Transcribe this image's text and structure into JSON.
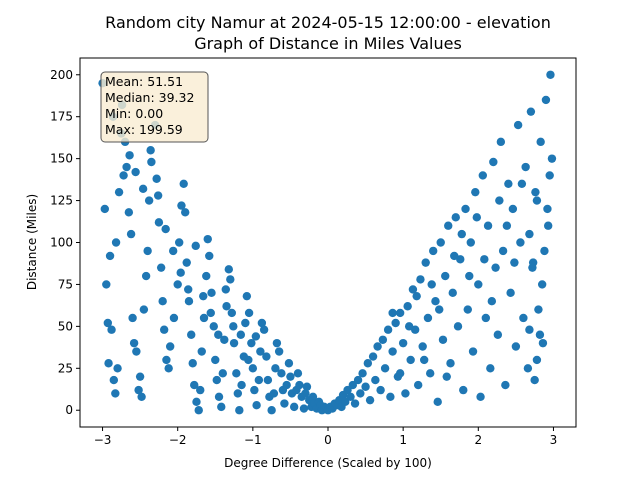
{
  "chart_data": {
    "type": "scatter",
    "title_line1": "Random city Namur at 2024-05-15 12:00:00  - elevation",
    "title_line2": "Graph of Distance in Miles Values",
    "xlabel": "Degree Difference (Scaled by 100)",
    "ylabel": "Distance (Miles)",
    "xlim": [
      -3.3,
      3.3
    ],
    "ylim": [
      -10,
      210
    ],
    "x_ticks": [
      -3,
      -2,
      -1,
      0,
      1,
      2,
      3
    ],
    "y_ticks": [
      0,
      25,
      50,
      75,
      100,
      125,
      150,
      175,
      200
    ],
    "point_color": "#1f77b4",
    "stats": {
      "mean": "Mean: 51.51",
      "median": "Median: 39.32",
      "min": "Min: 0.00",
      "max": "Max: 199.59"
    },
    "stats_box_fill": "#f9ecd2",
    "points": [
      [
        -3.0,
        195
      ],
      [
        -2.97,
        120
      ],
      [
        -2.95,
        75
      ],
      [
        -2.9,
        92
      ],
      [
        -2.93,
        52
      ],
      [
        -2.88,
        48
      ],
      [
        -2.92,
        28
      ],
      [
        -2.85,
        18
      ],
      [
        -2.83,
        10
      ],
      [
        -2.8,
        25
      ],
      [
        -2.82,
        100
      ],
      [
        -2.78,
        130
      ],
      [
        -2.75,
        165
      ],
      [
        -2.7,
        160
      ],
      [
        -2.72,
        140
      ],
      [
        -2.68,
        145
      ],
      [
        -2.65,
        118
      ],
      [
        -2.62,
        105
      ],
      [
        -2.6,
        55
      ],
      [
        -2.58,
        40
      ],
      [
        -2.55,
        35
      ],
      [
        -2.5,
        20
      ],
      [
        -2.52,
        12
      ],
      [
        -2.48,
        8
      ],
      [
        -2.45,
        60
      ],
      [
        -2.42,
        80
      ],
      [
        -2.4,
        95
      ],
      [
        -2.38,
        125
      ],
      [
        -2.35,
        148
      ],
      [
        -2.3,
        170
      ],
      [
        -2.28,
        138
      ],
      [
        -2.25,
        112
      ],
      [
        -2.22,
        85
      ],
      [
        -2.2,
        65
      ],
      [
        -2.18,
        48
      ],
      [
        -2.15,
        30
      ],
      [
        -2.12,
        25
      ],
      [
        -2.1,
        38
      ],
      [
        -2.05,
        55
      ],
      [
        -2.0,
        75
      ],
      [
        -1.98,
        100
      ],
      [
        -1.95,
        122
      ],
      [
        -1.92,
        135
      ],
      [
        -1.9,
        118
      ],
      [
        -1.88,
        88
      ],
      [
        -1.85,
        65
      ],
      [
        -1.82,
        45
      ],
      [
        -1.8,
        28
      ],
      [
        -1.78,
        15
      ],
      [
        -1.75,
        5
      ],
      [
        -1.72,
        0
      ],
      [
        -1.7,
        12
      ],
      [
        -1.68,
        35
      ],
      [
        -1.65,
        55
      ],
      [
        -1.62,
        80
      ],
      [
        -1.6,
        102
      ],
      [
        -1.58,
        92
      ],
      [
        -1.55,
        70
      ],
      [
        -1.52,
        50
      ],
      [
        -1.5,
        30
      ],
      [
        -1.48,
        18
      ],
      [
        -1.45,
        8
      ],
      [
        -1.42,
        2
      ],
      [
        -1.4,
        22
      ],
      [
        -1.38,
        42
      ],
      [
        -1.35,
        62
      ],
      [
        -1.32,
        84
      ],
      [
        -1.3,
        78
      ],
      [
        -1.28,
        58
      ],
      [
        -1.25,
        40
      ],
      [
        -1.22,
        22
      ],
      [
        -1.2,
        10
      ],
      [
        -1.18,
        0
      ],
      [
        -1.15,
        15
      ],
      [
        -1.12,
        32
      ],
      [
        -1.1,
        52
      ],
      [
        -1.08,
        68
      ],
      [
        -1.05,
        58
      ],
      [
        -1.02,
        40
      ],
      [
        -1.0,
        25
      ],
      [
        -0.98,
        12
      ],
      [
        -0.95,
        3
      ],
      [
        -0.92,
        18
      ],
      [
        -0.9,
        35
      ],
      [
        -0.88,
        52
      ],
      [
        -0.85,
        48
      ],
      [
        -0.82,
        32
      ],
      [
        -0.8,
        18
      ],
      [
        -0.78,
        8
      ],
      [
        -0.75,
        0
      ],
      [
        -0.72,
        10
      ],
      [
        -0.7,
        25
      ],
      [
        -0.68,
        40
      ],
      [
        -0.65,
        35
      ],
      [
        -0.62,
        22
      ],
      [
        -0.6,
        12
      ],
      [
        -0.58,
        4
      ],
      [
        -0.55,
        15
      ],
      [
        -0.52,
        28
      ],
      [
        -0.5,
        20
      ],
      [
        -0.48,
        10
      ],
      [
        -0.45,
        2
      ],
      [
        -0.42,
        12
      ],
      [
        -0.4,
        22
      ],
      [
        -0.38,
        15
      ],
      [
        -0.35,
        8
      ],
      [
        -0.32,
        1
      ],
      [
        -0.3,
        10
      ],
      [
        -0.28,
        14
      ],
      [
        -0.25,
        6
      ],
      [
        -0.22,
        2
      ],
      [
        -0.2,
        8
      ],
      [
        -0.18,
        4
      ],
      [
        -0.15,
        1
      ],
      [
        -0.12,
        5
      ],
      [
        -0.1,
        3
      ],
      [
        -0.08,
        0
      ],
      [
        -0.05,
        2
      ],
      [
        -0.02,
        1
      ],
      [
        0.0,
        0
      ],
      [
        0.03,
        2
      ],
      [
        0.06,
        1
      ],
      [
        0.09,
        4
      ],
      [
        0.12,
        3
      ],
      [
        0.15,
        6
      ],
      [
        0.18,
        2
      ],
      [
        0.2,
        9
      ],
      [
        0.23,
        5
      ],
      [
        0.26,
        12
      ],
      [
        0.3,
        8
      ],
      [
        0.33,
        15
      ],
      [
        0.36,
        4
      ],
      [
        0.4,
        18
      ],
      [
        0.43,
        10
      ],
      [
        0.46,
        22
      ],
      [
        0.5,
        14
      ],
      [
        0.53,
        28
      ],
      [
        0.56,
        6
      ],
      [
        0.6,
        32
      ],
      [
        0.63,
        18
      ],
      [
        0.66,
        38
      ],
      [
        0.7,
        12
      ],
      [
        0.73,
        42
      ],
      [
        0.76,
        25
      ],
      [
        0.8,
        48
      ],
      [
        0.83,
        8
      ],
      [
        0.86,
        35
      ],
      [
        0.9,
        52
      ],
      [
        0.93,
        20
      ],
      [
        0.96,
        58
      ],
      [
        1.0,
        40
      ],
      [
        1.03,
        10
      ],
      [
        1.06,
        62
      ],
      [
        1.1,
        30
      ],
      [
        1.13,
        72
      ],
      [
        1.16,
        48
      ],
      [
        1.2,
        15
      ],
      [
        1.23,
        78
      ],
      [
        1.26,
        38
      ],
      [
        1.3,
        88
      ],
      [
        1.33,
        55
      ],
      [
        1.36,
        22
      ],
      [
        1.4,
        95
      ],
      [
        1.43,
        65
      ],
      [
        1.46,
        5
      ],
      [
        1.5,
        100
      ],
      [
        1.53,
        42
      ],
      [
        1.56,
        80
      ],
      [
        1.6,
        110
      ],
      [
        1.63,
        28
      ],
      [
        1.66,
        70
      ],
      [
        1.7,
        115
      ],
      [
        1.73,
        50
      ],
      [
        1.76,
        90
      ],
      [
        1.8,
        12
      ],
      [
        1.83,
        120
      ],
      [
        1.86,
        60
      ],
      [
        1.9,
        100
      ],
      [
        1.93,
        35
      ],
      [
        1.96,
        130
      ],
      [
        2.0,
        75
      ],
      [
        2.03,
        8
      ],
      [
        2.06,
        140
      ],
      [
        2.1,
        55
      ],
      [
        2.13,
        110
      ],
      [
        2.16,
        25
      ],
      [
        2.2,
        148
      ],
      [
        2.23,
        85
      ],
      [
        2.26,
        45
      ],
      [
        2.3,
        160
      ],
      [
        2.33,
        95
      ],
      [
        2.36,
        15
      ],
      [
        2.4,
        135
      ],
      [
        2.43,
        70
      ],
      [
        2.46,
        120
      ],
      [
        2.5,
        38
      ],
      [
        2.53,
        170
      ],
      [
        2.56,
        100
      ],
      [
        2.6,
        55
      ],
      [
        2.63,
        145
      ],
      [
        2.66,
        25
      ],
      [
        2.7,
        178
      ],
      [
        2.73,
        88
      ],
      [
        2.76,
        130
      ],
      [
        2.8,
        60
      ],
      [
        2.83,
        160
      ],
      [
        2.86,
        40
      ],
      [
        2.9,
        185
      ],
      [
        2.93,
        110
      ],
      [
        2.96,
        200
      ],
      [
        2.98,
        150
      ],
      [
        2.95,
        140
      ],
      [
        2.92,
        120
      ],
      [
        2.88,
        95
      ],
      [
        2.85,
        75
      ],
      [
        2.82,
        45
      ],
      [
        2.78,
        30
      ],
      [
        2.75,
        18
      ],
      [
        2.72,
        85
      ],
      [
        2.68,
        105
      ],
      [
        -2.86,
        175
      ],
      [
        -2.74,
        182
      ],
      [
        -2.64,
        152
      ],
      [
        -2.56,
        142
      ],
      [
        -2.46,
        132
      ],
      [
        -2.36,
        155
      ],
      [
        -2.26,
        128
      ],
      [
        -2.16,
        108
      ],
      [
        -2.06,
        95
      ],
      [
        -1.96,
        82
      ],
      [
        -1.86,
        72
      ],
      [
        -1.76,
        98
      ],
      [
        -1.66,
        68
      ],
      [
        -1.56,
        58
      ],
      [
        -1.46,
        45
      ],
      [
        -1.36,
        72
      ],
      [
        -1.26,
        50
      ],
      [
        -1.16,
        45
      ],
      [
        -1.06,
        30
      ],
      [
        -0.96,
        44
      ],
      [
        0.86,
        58
      ],
      [
        0.96,
        22
      ],
      [
        1.08,
        50
      ],
      [
        1.18,
        68
      ],
      [
        1.28,
        30
      ],
      [
        1.38,
        75
      ],
      [
        1.48,
        60
      ],
      [
        1.58,
        20
      ],
      [
        1.68,
        92
      ],
      [
        1.78,
        105
      ],
      [
        1.88,
        80
      ],
      [
        1.98,
        115
      ],
      [
        2.08,
        90
      ],
      [
        2.18,
        65
      ],
      [
        2.28,
        125
      ],
      [
        2.38,
        110
      ],
      [
        2.48,
        88
      ],
      [
        2.58,
        135
      ],
      [
        2.68,
        48
      ],
      [
        2.78,
        125
      ]
    ]
  }
}
